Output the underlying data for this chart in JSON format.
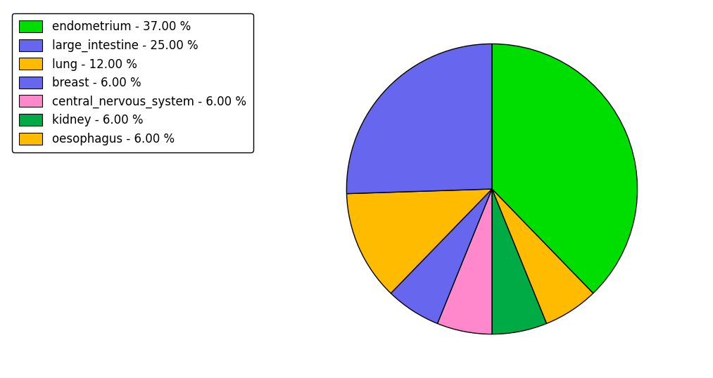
{
  "labels": [
    "endometrium",
    "oesophagus",
    "kidney",
    "central_nervous_system",
    "breast",
    "lung",
    "large_intestine"
  ],
  "values": [
    37.0,
    6.0,
    6.0,
    6.0,
    6.0,
    12.0,
    25.0
  ],
  "colors": [
    "#00dd00",
    "#ffbb00",
    "#00aa44",
    "#ff88cc",
    "#6666ee",
    "#ffbb00",
    "#6666ee"
  ],
  "legend_labels": [
    "endometrium - 37.00 %",
    "large_intestine - 25.00 %",
    "lung - 12.00 %",
    "breast - 6.00 %",
    "central_nervous_system - 6.00 %",
    "kidney - 6.00 %",
    "oesophagus - 6.00 %"
  ],
  "legend_colors": [
    "#00dd00",
    "#6666ee",
    "#ffbb00",
    "#6666ee",
    "#ff88cc",
    "#00aa44",
    "#ffbb00"
  ],
  "startangle": 90,
  "counterclock": false,
  "background_color": "#ffffff"
}
